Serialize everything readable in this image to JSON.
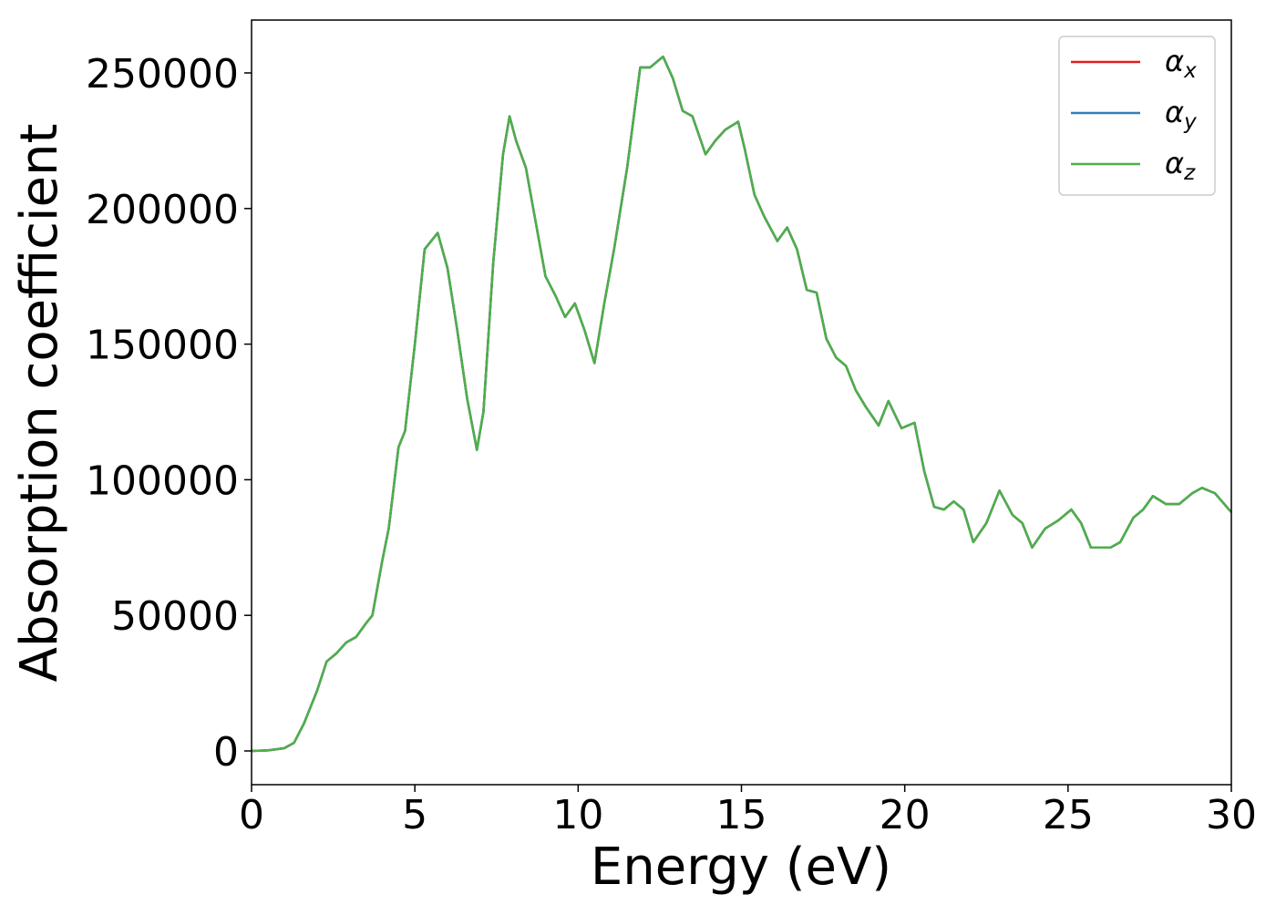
{
  "chart_data": {
    "type": "line",
    "xlabel": "Energy (eV)",
    "ylabel": "Absorption coefficient",
    "x": [
      0,
      0.5,
      1.0,
      1.3,
      1.6,
      2.0,
      2.3,
      2.6,
      2.9,
      3.2,
      3.5,
      3.7,
      4.0,
      4.2,
      4.5,
      4.7,
      5.0,
      5.3,
      5.7,
      6.0,
      6.3,
      6.6,
      6.9,
      7.1,
      7.4,
      7.7,
      7.9,
      8.1,
      8.4,
      8.7,
      9.0,
      9.3,
      9.6,
      9.9,
      10.2,
      10.5,
      10.8,
      11.1,
      11.5,
      11.9,
      12.2,
      12.6,
      12.9,
      13.2,
      13.5,
      13.9,
      14.2,
      14.5,
      14.9,
      15.1,
      15.4,
      15.7,
      16.1,
      16.4,
      16.7,
      17.0,
      17.3,
      17.6,
      17.9,
      18.2,
      18.5,
      18.8,
      19.2,
      19.5,
      19.9,
      20.3,
      20.6,
      20.9,
      21.2,
      21.5,
      21.8,
      22.1,
      22.5,
      22.9,
      23.3,
      23.6,
      23.9,
      24.3,
      24.7,
      25.1,
      25.4,
      25.7,
      26.0,
      26.3,
      26.6,
      27.0,
      27.3,
      27.6,
      28.0,
      28.4,
      28.8,
      29.1,
      29.5,
      30.0
    ],
    "series": [
      {
        "name": "αx",
        "color": "#e41a1c",
        "values": [
          0,
          200,
          1000,
          3000,
          10000,
          22000,
          33000,
          36000,
          40000,
          42000,
          47000,
          50000,
          70000,
          82000,
          112000,
          118000,
          150000,
          185000,
          191000,
          178000,
          155000,
          130000,
          111000,
          125000,
          180000,
          220000,
          234000,
          225000,
          215000,
          195000,
          175000,
          168000,
          160000,
          165000,
          155000,
          143000,
          165000,
          185000,
          215000,
          252000,
          252000,
          256000,
          248000,
          236000,
          234000,
          220000,
          225000,
          229000,
          232000,
          222000,
          205000,
          197000,
          188000,
          193000,
          185000,
          170000,
          169000,
          152000,
          145000,
          142000,
          133000,
          127000,
          120000,
          129000,
          119000,
          121000,
          103000,
          90000,
          89000,
          92000,
          89000,
          77000,
          84000,
          96000,
          87000,
          84000,
          75000,
          82000,
          85000,
          89000,
          84000,
          75000,
          75000,
          75000,
          77000,
          86000,
          89000,
          94000,
          91000,
          91000,
          95000,
          97000,
          95000,
          88000
        ]
      },
      {
        "name": "αy",
        "color": "#377eb8",
        "values": [
          0,
          200,
          1000,
          3000,
          10000,
          22000,
          33000,
          36000,
          40000,
          42000,
          47000,
          50000,
          70000,
          82000,
          112000,
          118000,
          150000,
          185000,
          191000,
          178000,
          155000,
          130000,
          111000,
          125000,
          180000,
          220000,
          234000,
          225000,
          215000,
          195000,
          175000,
          168000,
          160000,
          165000,
          155000,
          143000,
          165000,
          185000,
          215000,
          252000,
          252000,
          256000,
          248000,
          236000,
          234000,
          220000,
          225000,
          229000,
          232000,
          222000,
          205000,
          197000,
          188000,
          193000,
          185000,
          170000,
          169000,
          152000,
          145000,
          142000,
          133000,
          127000,
          120000,
          129000,
          119000,
          121000,
          103000,
          90000,
          89000,
          92000,
          89000,
          77000,
          84000,
          96000,
          87000,
          84000,
          75000,
          82000,
          85000,
          89000,
          84000,
          75000,
          75000,
          75000,
          77000,
          86000,
          89000,
          94000,
          91000,
          91000,
          95000,
          97000,
          95000,
          88000
        ]
      },
      {
        "name": "αz",
        "color": "#4daf4a",
        "values": [
          0,
          200,
          1000,
          3000,
          10000,
          22000,
          33000,
          36000,
          40000,
          42000,
          47000,
          50000,
          70000,
          82000,
          112000,
          118000,
          150000,
          185000,
          191000,
          178000,
          155000,
          130000,
          111000,
          125000,
          180000,
          220000,
          234000,
          225000,
          215000,
          195000,
          175000,
          168000,
          160000,
          165000,
          155000,
          143000,
          165000,
          185000,
          215000,
          252000,
          252000,
          256000,
          248000,
          236000,
          234000,
          220000,
          225000,
          229000,
          232000,
          222000,
          205000,
          197000,
          188000,
          193000,
          185000,
          170000,
          169000,
          152000,
          145000,
          142000,
          133000,
          127000,
          120000,
          129000,
          119000,
          121000,
          103000,
          90000,
          89000,
          92000,
          89000,
          77000,
          84000,
          96000,
          87000,
          84000,
          75000,
          82000,
          85000,
          89000,
          84000,
          75000,
          75000,
          75000,
          77000,
          86000,
          89000,
          94000,
          91000,
          91000,
          95000,
          97000,
          95000,
          88000
        ]
      }
    ],
    "xlim": [
      0,
      30
    ],
    "xticks": [
      0,
      5,
      10,
      15,
      20,
      25,
      30
    ],
    "ylim": [
      -12433,
      269489
    ],
    "yticks": [
      0,
      50000,
      100000,
      150000,
      200000,
      250000
    ],
    "legend": "upper right"
  }
}
